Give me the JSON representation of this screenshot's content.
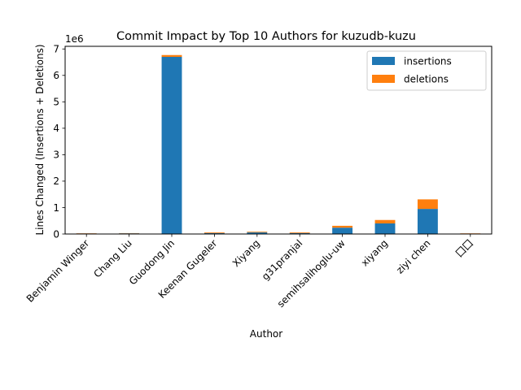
{
  "chart_data": {
    "type": "bar",
    "stacked": true,
    "title": "Commit Impact by Top 10 Authors for kuzudb-kuzu",
    "xlabel": "Author",
    "ylabel": "Lines Changed (Insertions + Deletions)",
    "y_multiplier_label": "1e6",
    "y_ticks": [
      "0",
      "1",
      "2",
      "3",
      "4",
      "5",
      "6",
      "7"
    ],
    "ylim": [
      0,
      7100000
    ],
    "grid": false,
    "legend_position": "top-right",
    "categories": [
      "Benjamin Winger",
      "Chang Liu",
      "Guodong Jin",
      "Keenan Gugeler",
      "Xiyang",
      "g31pranjal",
      "semihsalihoglu-uw",
      "xiyang",
      "ziyi chen",
      "囗囗"
    ],
    "series": [
      {
        "name": "insertions",
        "color": "#1f77b4",
        "values": [
          20000,
          25000,
          6700000,
          35000,
          60000,
          35000,
          240000,
          400000,
          950000,
          15000
        ]
      },
      {
        "name": "deletions",
        "color": "#ff7f0e",
        "values": [
          8000,
          8000,
          70000,
          25000,
          25000,
          25000,
          70000,
          130000,
          360000,
          8000
        ]
      }
    ]
  }
}
